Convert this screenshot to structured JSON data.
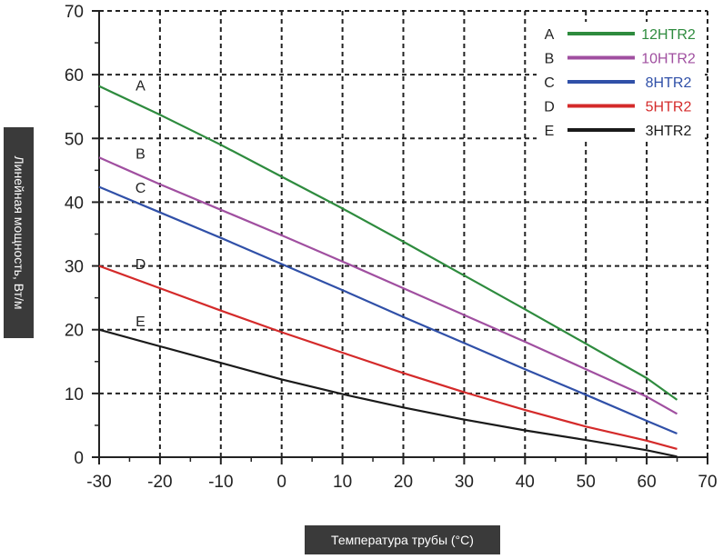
{
  "chart_data": {
    "type": "line",
    "xlabel": "Температура трубы (°C)",
    "ylabel": "Линейная мощность, Вт/м",
    "xlim": [
      -30,
      70
    ],
    "ylim": [
      0,
      70
    ],
    "x_ticks": [
      -30,
      -20,
      -10,
      0,
      10,
      20,
      30,
      40,
      50,
      60,
      70
    ],
    "y_ticks": [
      0,
      10,
      20,
      30,
      40,
      50,
      60,
      70
    ],
    "grid": true,
    "legend_position": "top-right",
    "series": [
      {
        "name": "12HTR2",
        "letter": "A",
        "color": "#2e8b3e",
        "x": [
          -30,
          -20,
          -10,
          0,
          10,
          20,
          30,
          40,
          50,
          60,
          65
        ],
        "y": [
          58.2,
          53.7,
          49.0,
          44.0,
          39.0,
          33.8,
          28.5,
          23.2,
          17.8,
          12.4,
          9.0
        ]
      },
      {
        "name": "10HTR2",
        "letter": "B",
        "color": "#a04fa0",
        "x": [
          -30,
          -20,
          -10,
          0,
          10,
          20,
          30,
          40,
          50,
          60,
          65
        ],
        "y": [
          47.0,
          42.8,
          38.8,
          34.8,
          30.7,
          26.5,
          22.3,
          18.1,
          13.8,
          9.5,
          6.8
        ]
      },
      {
        "name": "8HTR2",
        "letter": "C",
        "color": "#3050a8",
        "x": [
          -30,
          -20,
          -10,
          0,
          10,
          20,
          30,
          40,
          50,
          60,
          65
        ],
        "y": [
          42.4,
          38.4,
          34.4,
          30.3,
          26.2,
          22.0,
          17.9,
          13.8,
          9.8,
          5.7,
          3.7
        ]
      },
      {
        "name": "5HTR2",
        "letter": "D",
        "color": "#d42a2a",
        "x": [
          -30,
          -20,
          -10,
          0,
          10,
          20,
          30,
          40,
          50,
          60,
          65
        ],
        "y": [
          30.0,
          26.5,
          23.0,
          19.6,
          16.4,
          13.2,
          10.2,
          7.4,
          4.8,
          2.6,
          1.3
        ]
      },
      {
        "name": "3HTR2",
        "letter": "E",
        "color": "#1a1a1a",
        "x": [
          -30,
          -20,
          -10,
          0,
          10,
          20,
          30,
          40,
          50,
          60,
          65
        ],
        "y": [
          20.0,
          17.4,
          14.8,
          12.2,
          9.9,
          7.8,
          5.9,
          4.2,
          2.7,
          1.1,
          0.1
        ]
      }
    ],
    "curve_labels": [
      {
        "letter": "A",
        "x": -23.2,
        "y": 57.5
      },
      {
        "letter": "B",
        "x": -23.2,
        "y": 46.8
      },
      {
        "letter": "C",
        "x": -23.2,
        "y": 41.5
      },
      {
        "letter": "D",
        "x": -23.2,
        "y": 29.5
      },
      {
        "letter": "E",
        "x": -23.2,
        "y": 20.5
      }
    ]
  }
}
